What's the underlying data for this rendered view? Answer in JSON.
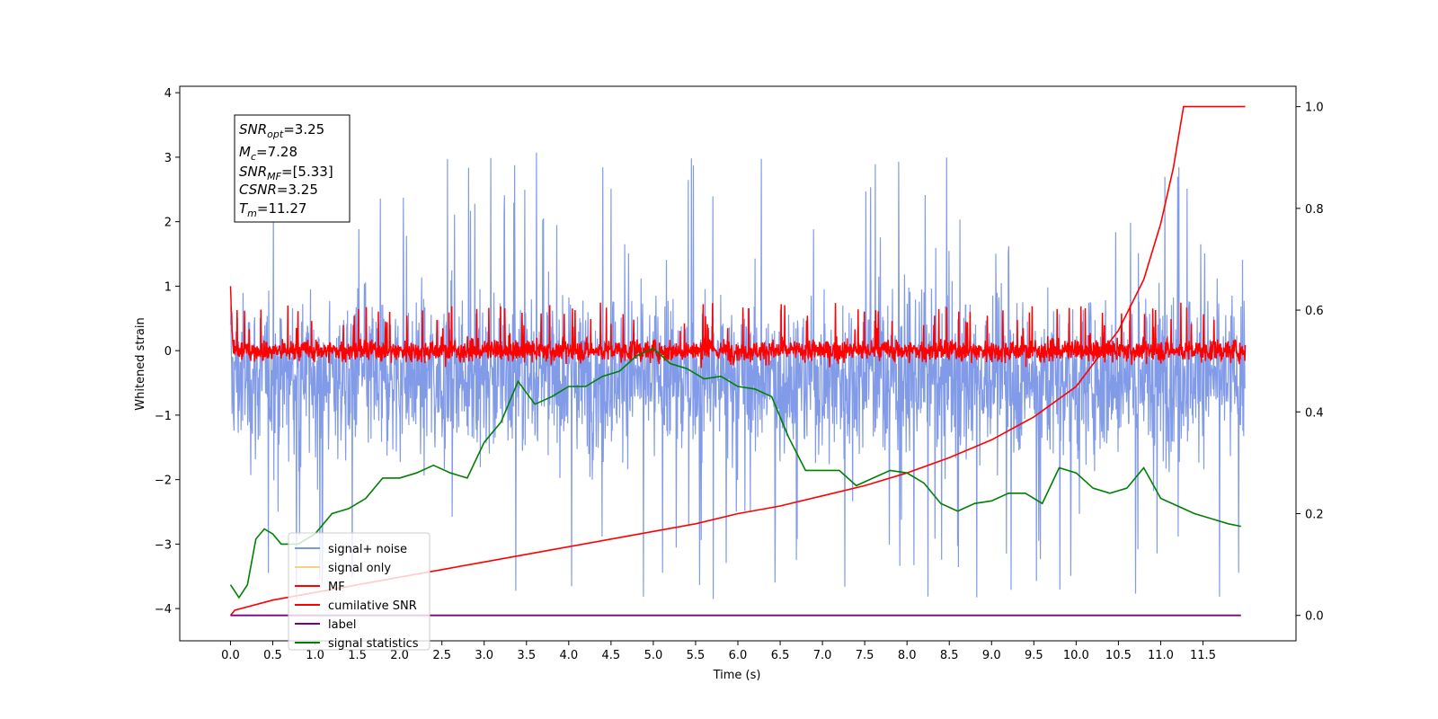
{
  "chart_data": {
    "type": "line",
    "xlabel": "Time (s)",
    "ylabel_left": "Whitened strain",
    "ylabel_right": "",
    "xlim": [
      -0.6,
      12.6
    ],
    "ylim_left": [
      -4.5,
      4.1
    ],
    "ylim_right": [
      -0.05,
      1.04
    ],
    "x_ticks": [
      "0.0",
      "0.5",
      "1.0",
      "1.5",
      "2.0",
      "2.5",
      "3.0",
      "3.5",
      "4.0",
      "4.5",
      "5.0",
      "5.5",
      "6.0",
      "6.5",
      "7.0",
      "7.5",
      "8.0",
      "8.5",
      "9.0",
      "9.5",
      "10.0",
      "10.5",
      "11.0",
      "11.5"
    ],
    "y_ticks_left": [
      "−4",
      "−3",
      "−2",
      "−1",
      "0",
      "1",
      "2",
      "3",
      "4"
    ],
    "y_ticks_right": [
      "0.0",
      "0.2",
      "0.4",
      "0.6",
      "0.8",
      "1.0"
    ],
    "grid": false,
    "legend_position": "lower-left",
    "annotation": {
      "snr_opt": {
        "sym": "SNR",
        "sub": "opt",
        "value": "=3.25"
      },
      "mc": {
        "sym": "M",
        "sub": "c",
        "value": "=7.28"
      },
      "snr_mf": {
        "sym": "SNR",
        "sub": "MF",
        "value": "=[5.33]"
      },
      "csnr": {
        "sym": "CSNR",
        "sub": "",
        "value": "=3.25"
      },
      "tm": {
        "sym": "T",
        "sub": "m",
        "value": "=11.27"
      }
    },
    "series": [
      {
        "name": "signal+ noise",
        "axis": "left",
        "color": "#7b96e8",
        "description_envelope": {
          "x_range": [
            0.0,
            12.0
          ],
          "mean": -0.4,
          "upper_typical": 1.9,
          "lower_typical": -2.0,
          "max_peak": 3.6,
          "min_peak": -4.15
        }
      },
      {
        "name": "signal only",
        "axis": "left",
        "color": "#f5d08a",
        "values": []
      },
      {
        "name": "MF",
        "axis": "left",
        "color": "#ff0000",
        "description_envelope": {
          "x_range": [
            0.0,
            12.0
          ],
          "mean": 0.0,
          "upper_typical": 0.45,
          "lower_typical": -0.3,
          "max_peak": 1.0
        }
      },
      {
        "name": "cumilative SNR",
        "axis": "right",
        "color": "#ff0000",
        "x": [
          0.0,
          0.05,
          0.5,
          1.0,
          1.5,
          2.0,
          2.5,
          3.0,
          3.5,
          4.0,
          4.5,
          5.0,
          5.5,
          6.0,
          6.5,
          7.0,
          7.5,
          8.0,
          8.5,
          9.0,
          9.5,
          10.0,
          10.5,
          10.8,
          11.0,
          11.15,
          11.27,
          12.0
        ],
        "y": [
          0.0,
          0.01,
          0.03,
          0.045,
          0.06,
          0.075,
          0.09,
          0.105,
          0.12,
          0.135,
          0.15,
          0.165,
          0.18,
          0.2,
          0.215,
          0.235,
          0.255,
          0.28,
          0.31,
          0.345,
          0.39,
          0.45,
          0.56,
          0.66,
          0.77,
          0.88,
          1.0,
          1.0
        ]
      },
      {
        "name": "label",
        "axis": "right",
        "color": "#800080",
        "x": [
          0.0,
          11.95
        ],
        "y": [
          0.0,
          0.0
        ]
      },
      {
        "name": "signal statistics",
        "axis": "right",
        "color": "#008000",
        "x": [
          0.0,
          0.1,
          0.2,
          0.3,
          0.4,
          0.5,
          0.6,
          0.8,
          1.0,
          1.2,
          1.4,
          1.6,
          1.8,
          2.0,
          2.2,
          2.4,
          2.6,
          2.8,
          3.0,
          3.2,
          3.4,
          3.6,
          3.8,
          4.0,
          4.2,
          4.4,
          4.6,
          4.8,
          5.0,
          5.2,
          5.4,
          5.6,
          5.8,
          6.0,
          6.2,
          6.4,
          6.6,
          6.8,
          7.0,
          7.2,
          7.4,
          7.6,
          7.8,
          8.0,
          8.2,
          8.4,
          8.6,
          8.8,
          9.0,
          9.2,
          9.4,
          9.6,
          9.8,
          10.0,
          10.2,
          10.4,
          10.6,
          10.8,
          11.0,
          11.2,
          11.4,
          11.6,
          11.8,
          11.95
        ],
        "y": [
          0.06,
          0.035,
          0.06,
          0.15,
          0.17,
          0.16,
          0.14,
          0.14,
          0.16,
          0.2,
          0.21,
          0.23,
          0.27,
          0.27,
          0.28,
          0.295,
          0.28,
          0.27,
          0.34,
          0.38,
          0.46,
          0.415,
          0.43,
          0.45,
          0.45,
          0.47,
          0.48,
          0.51,
          0.525,
          0.495,
          0.485,
          0.465,
          0.47,
          0.45,
          0.445,
          0.43,
          0.35,
          0.285,
          0.285,
          0.285,
          0.255,
          0.27,
          0.285,
          0.28,
          0.26,
          0.22,
          0.205,
          0.22,
          0.225,
          0.24,
          0.24,
          0.22,
          0.29,
          0.28,
          0.25,
          0.24,
          0.25,
          0.29,
          0.23,
          0.215,
          0.2,
          0.19,
          0.18,
          0.175
        ]
      }
    ]
  }
}
